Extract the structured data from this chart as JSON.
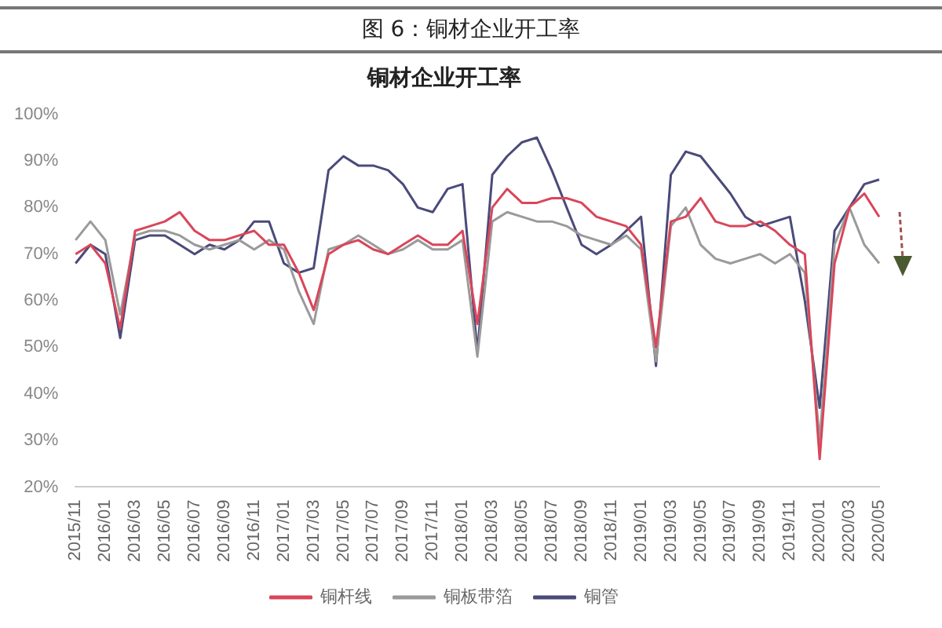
{
  "chart_data": {
    "type": "line",
    "title": "图 6：铜材企业开工率",
    "subtitle": "铜材企业开工率",
    "categories": [
      "2015/11",
      null,
      "2016/01",
      null,
      "2016/03",
      null,
      "2016/05",
      null,
      "2016/07",
      null,
      "2016/09",
      null,
      "2016/11",
      null,
      "2017/01",
      null,
      "2017/03",
      null,
      "2017/05",
      null,
      "2017/07",
      null,
      "2017/09",
      null,
      "2017/11",
      null,
      "2018/01",
      null,
      "2018/03",
      null,
      "2018/05",
      null,
      "2018/07",
      null,
      "2018/09",
      null,
      "2018/11",
      null,
      "2019/01",
      null,
      "2019/03",
      null,
      "2019/05",
      null,
      "2019/07",
      null,
      "2019/09",
      null,
      "2019/11",
      null,
      "2020/01",
      null,
      "2020/03",
      null,
      "2020/05"
    ],
    "series": [
      {
        "name": "铜杆线",
        "color": "#d9465a",
        "values": [
          70,
          72,
          68,
          54,
          75,
          76,
          77,
          79,
          75,
          73,
          73,
          74,
          75,
          72,
          72,
          66,
          58,
          70,
          72,
          73,
          71,
          70,
          72,
          74,
          72,
          72,
          75,
          55,
          80,
          84,
          81,
          81,
          82,
          82,
          81,
          78,
          77,
          76,
          72,
          50,
          77,
          78,
          82,
          77,
          76,
          76,
          77,
          75,
          72,
          70,
          26,
          68,
          80,
          83,
          78
        ]
      },
      {
        "name": "铜板带箔",
        "color": "#9a9a9a",
        "values": [
          73,
          77,
          73,
          57,
          74,
          75,
          75,
          74,
          72,
          71,
          72,
          73,
          71,
          73,
          71,
          62,
          55,
          71,
          72,
          74,
          72,
          70,
          71,
          73,
          71,
          71,
          73,
          48,
          77,
          79,
          78,
          77,
          77,
          76,
          74,
          73,
          72,
          74,
          71,
          47,
          76,
          80,
          72,
          69,
          68,
          69,
          70,
          68,
          70,
          66,
          30,
          72,
          80,
          72,
          68
        ]
      },
      {
        "name": "铜管",
        "color": "#4a4a7a",
        "values": [
          68,
          72,
          70,
          52,
          73,
          74,
          74,
          72,
          70,
          72,
          71,
          73,
          77,
          77,
          68,
          66,
          67,
          88,
          91,
          89,
          89,
          88,
          85,
          80,
          79,
          84,
          85,
          49,
          87,
          91,
          94,
          95,
          88,
          80,
          72,
          70,
          72,
          75,
          78,
          46,
          87,
          92,
          91,
          87,
          83,
          78,
          76,
          77,
          78,
          60,
          37,
          75,
          80,
          85,
          86
        ]
      }
    ],
    "ylim": [
      20,
      100
    ],
    "yticks": [
      {
        "value": 20,
        "label": "20%"
      },
      {
        "value": 30,
        "label": "30%"
      },
      {
        "value": 40,
        "label": "40%"
      },
      {
        "value": 50,
        "label": "50%"
      },
      {
        "value": 60,
        "label": "60%"
      },
      {
        "value": 70,
        "label": "70%"
      },
      {
        "value": 80,
        "label": "80%"
      },
      {
        "value": 90,
        "label": "90%"
      },
      {
        "value": 100,
        "label": "100%"
      }
    ],
    "legend": "bottom",
    "marker": "none",
    "line_style": "solid"
  }
}
